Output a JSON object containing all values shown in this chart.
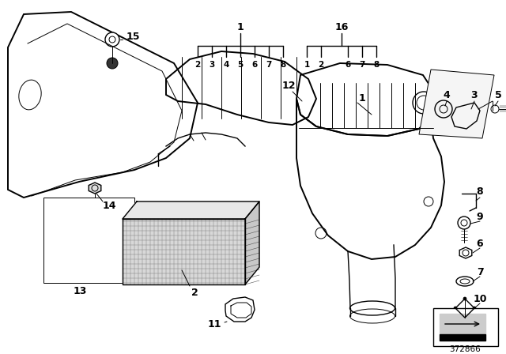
{
  "bg_color": "#ffffff",
  "diagram_number": "372866",
  "fig_width": 6.4,
  "fig_height": 4.48,
  "dpi": 100
}
